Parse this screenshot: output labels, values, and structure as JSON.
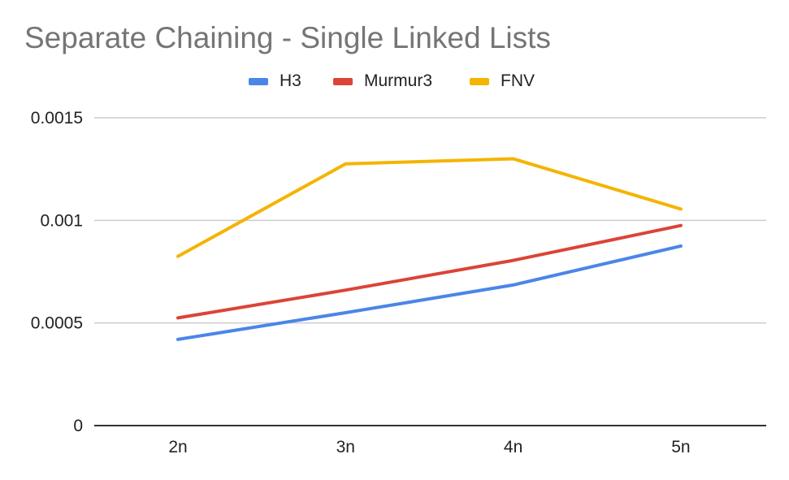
{
  "chart_data": {
    "type": "line",
    "title": "Separate Chaining - Single Linked Lists",
    "xlabel": "",
    "ylabel": "",
    "categories": [
      "2n",
      "3n",
      "4n",
      "5n"
    ],
    "y_ticks": [
      "0",
      "0.0005",
      "0.001",
      "0.0015"
    ],
    "y_tick_values": [
      0,
      0.0005,
      0.001,
      0.0015
    ],
    "ylim": [
      0,
      0.0015
    ],
    "grid": true,
    "legend_position": "top",
    "series": [
      {
        "name": "H3",
        "color": "#4a86e8",
        "values": [
          0.00042,
          0.00055,
          0.000685,
          0.000875
        ]
      },
      {
        "name": "Murmur3",
        "color": "#db4437",
        "values": [
          0.000525,
          0.00066,
          0.000805,
          0.000975
        ]
      },
      {
        "name": "FNV",
        "color": "#f4b400",
        "values": [
          0.000825,
          0.001275,
          0.0013,
          0.001055
        ]
      }
    ]
  }
}
